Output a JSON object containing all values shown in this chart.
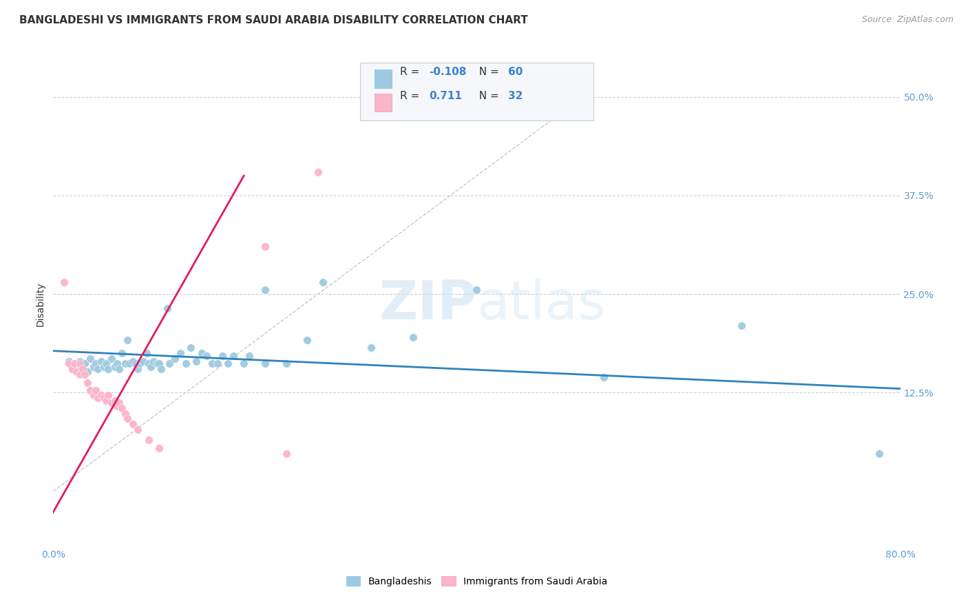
{
  "title": "BANGLADESHI VS IMMIGRANTS FROM SAUDI ARABIA DISABILITY CORRELATION CHART",
  "source": "Source: ZipAtlas.com",
  "ylabel": "Disability",
  "watermark": "ZIPatlas",
  "x_min": 0.0,
  "x_max": 0.8,
  "y_min": -0.07,
  "y_max": 0.545,
  "x_ticks": [
    0.0,
    0.1,
    0.2,
    0.3,
    0.4,
    0.5,
    0.6,
    0.7,
    0.8
  ],
  "x_tick_labels": [
    "0.0%",
    "",
    "",
    "",
    "",
    "",
    "",
    "",
    "80.0%"
  ],
  "y_tick_positions": [
    0.125,
    0.25,
    0.375,
    0.5
  ],
  "y_tick_labels": [
    "12.5%",
    "25.0%",
    "37.5%",
    "50.0%"
  ],
  "blue_color": "#9ecae1",
  "pink_color": "#fbb4c9",
  "blue_line_color": "#3182bd",
  "pink_line_color": "#e3195e",
  "diag_color": "#c8c8c8",
  "grid_color": "#d0d0d0",
  "blue_scatter": [
    [
      0.015,
      0.165
    ],
    [
      0.018,
      0.155
    ],
    [
      0.022,
      0.158
    ],
    [
      0.025,
      0.165
    ],
    [
      0.028,
      0.155
    ],
    [
      0.03,
      0.162
    ],
    [
      0.032,
      0.152
    ],
    [
      0.035,
      0.168
    ],
    [
      0.038,
      0.158
    ],
    [
      0.04,
      0.162
    ],
    [
      0.042,
      0.155
    ],
    [
      0.045,
      0.165
    ],
    [
      0.048,
      0.158
    ],
    [
      0.05,
      0.162
    ],
    [
      0.052,
      0.155
    ],
    [
      0.055,
      0.168
    ],
    [
      0.058,
      0.158
    ],
    [
      0.06,
      0.162
    ],
    [
      0.062,
      0.155
    ],
    [
      0.065,
      0.175
    ],
    [
      0.068,
      0.162
    ],
    [
      0.07,
      0.192
    ],
    [
      0.072,
      0.162
    ],
    [
      0.075,
      0.165
    ],
    [
      0.078,
      0.162
    ],
    [
      0.08,
      0.155
    ],
    [
      0.082,
      0.162
    ],
    [
      0.085,
      0.165
    ],
    [
      0.088,
      0.175
    ],
    [
      0.09,
      0.162
    ],
    [
      0.092,
      0.158
    ],
    [
      0.095,
      0.165
    ],
    [
      0.098,
      0.162
    ],
    [
      0.1,
      0.162
    ],
    [
      0.102,
      0.155
    ],
    [
      0.108,
      0.232
    ],
    [
      0.11,
      0.162
    ],
    [
      0.115,
      0.168
    ],
    [
      0.12,
      0.175
    ],
    [
      0.125,
      0.162
    ],
    [
      0.13,
      0.182
    ],
    [
      0.135,
      0.165
    ],
    [
      0.14,
      0.175
    ],
    [
      0.145,
      0.172
    ],
    [
      0.15,
      0.162
    ],
    [
      0.155,
      0.162
    ],
    [
      0.16,
      0.172
    ],
    [
      0.165,
      0.162
    ],
    [
      0.17,
      0.172
    ],
    [
      0.18,
      0.162
    ],
    [
      0.185,
      0.172
    ],
    [
      0.2,
      0.255
    ],
    [
      0.2,
      0.162
    ],
    [
      0.22,
      0.162
    ],
    [
      0.24,
      0.192
    ],
    [
      0.255,
      0.265
    ],
    [
      0.3,
      0.182
    ],
    [
      0.34,
      0.195
    ],
    [
      0.4,
      0.255
    ],
    [
      0.52,
      0.145
    ],
    [
      0.65,
      0.21
    ],
    [
      0.78,
      0.048
    ]
  ],
  "pink_scatter": [
    [
      0.01,
      0.265
    ],
    [
      0.015,
      0.162
    ],
    [
      0.018,
      0.155
    ],
    [
      0.02,
      0.162
    ],
    [
      0.022,
      0.152
    ],
    [
      0.025,
      0.162
    ],
    [
      0.025,
      0.148
    ],
    [
      0.028,
      0.155
    ],
    [
      0.03,
      0.148
    ],
    [
      0.032,
      0.138
    ],
    [
      0.035,
      0.128
    ],
    [
      0.038,
      0.122
    ],
    [
      0.04,
      0.128
    ],
    [
      0.042,
      0.118
    ],
    [
      0.045,
      0.122
    ],
    [
      0.048,
      0.118
    ],
    [
      0.05,
      0.115
    ],
    [
      0.052,
      0.122
    ],
    [
      0.055,
      0.112
    ],
    [
      0.058,
      0.115
    ],
    [
      0.06,
      0.108
    ],
    [
      0.062,
      0.112
    ],
    [
      0.065,
      0.105
    ],
    [
      0.068,
      0.098
    ],
    [
      0.07,
      0.092
    ],
    [
      0.075,
      0.085
    ],
    [
      0.08,
      0.078
    ],
    [
      0.09,
      0.065
    ],
    [
      0.1,
      0.055
    ],
    [
      0.2,
      0.31
    ],
    [
      0.22,
      0.048
    ],
    [
      0.25,
      0.405
    ]
  ],
  "blue_trendline": [
    [
      0.0,
      0.178
    ],
    [
      0.8,
      0.13
    ]
  ],
  "pink_trendline": [
    [
      -0.01,
      -0.05
    ],
    [
      0.18,
      0.4
    ]
  ],
  "title_fontsize": 11,
  "axis_fontsize": 10,
  "tick_fontsize": 10
}
